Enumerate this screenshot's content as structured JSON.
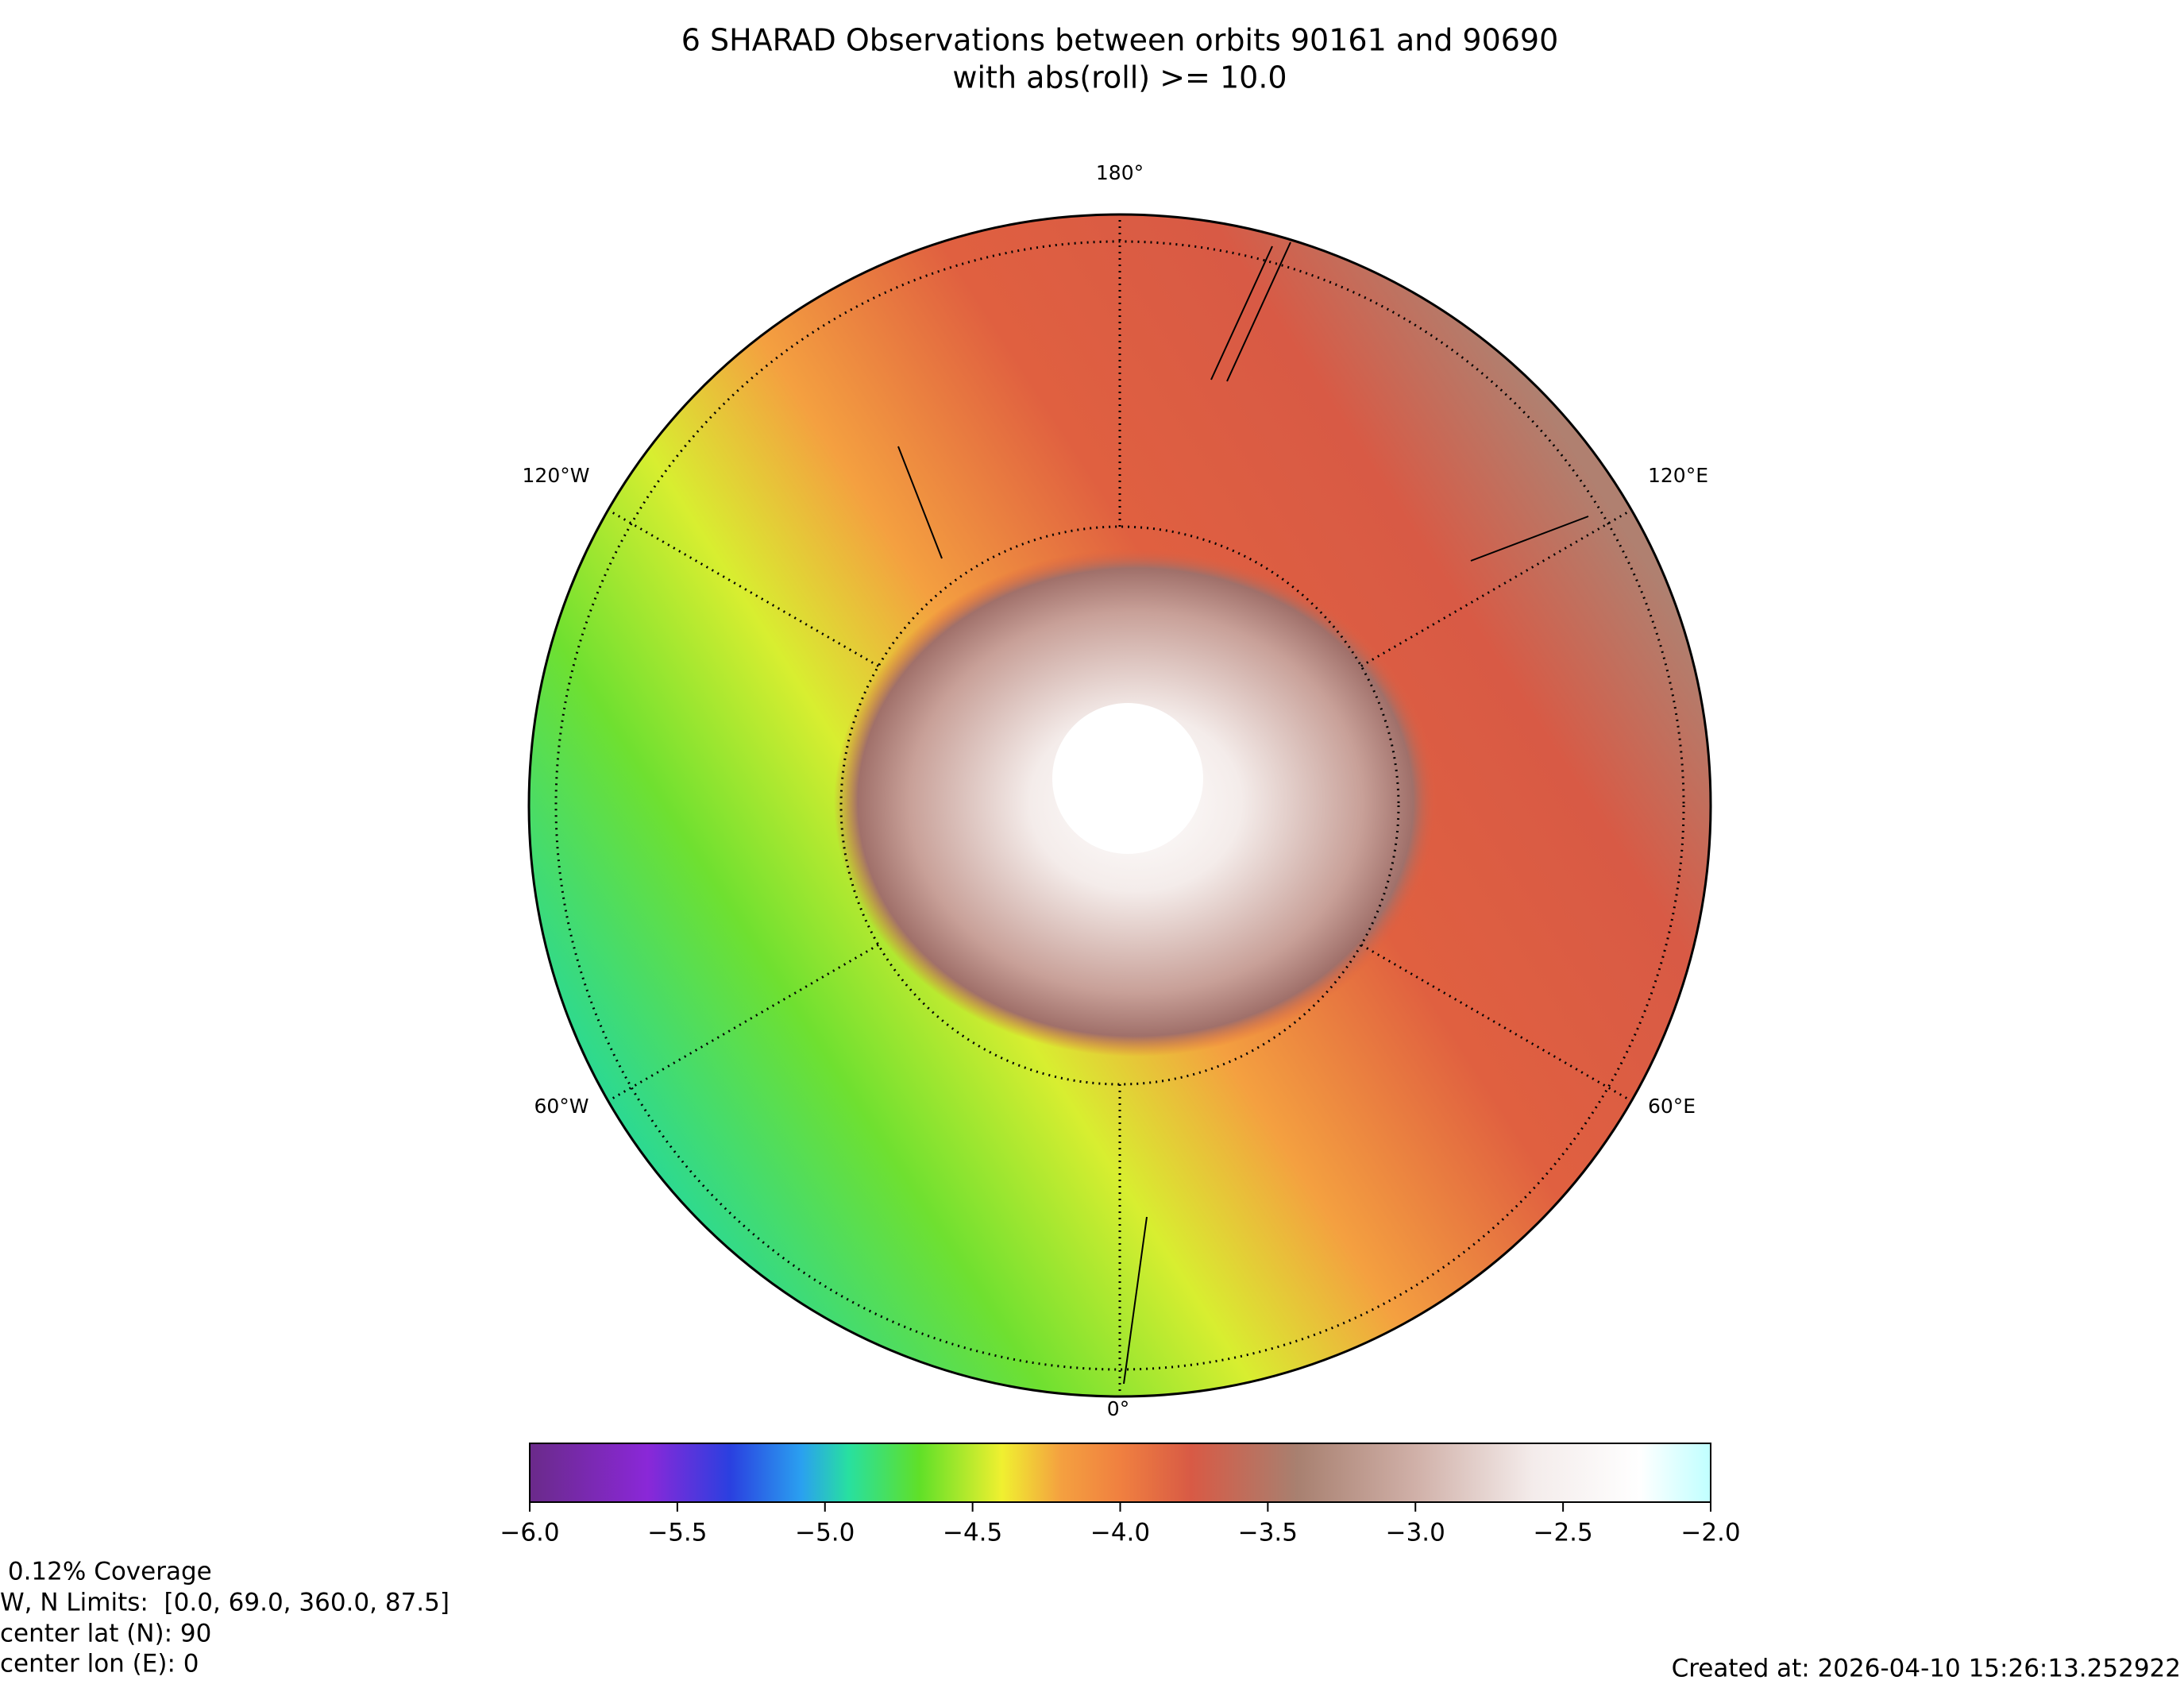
{
  "title": "6 SHARAD Observations between orbits 90161 and 90690",
  "subtitle": "with abs(roll) >= 10.0",
  "map": {
    "lon_labels": [
      "180°",
      "120°W",
      "120°E",
      "60°W",
      "60°E",
      "0°"
    ]
  },
  "colorbar": {
    "lim": [
      -6,
      -2
    ],
    "ticks": [
      {
        "value": -6,
        "label": "−6.0"
      },
      {
        "value": -5.5,
        "label": "−5.5"
      },
      {
        "value": -5,
        "label": "−5.0"
      },
      {
        "value": -4.5,
        "label": "−4.5"
      },
      {
        "value": -4,
        "label": "−4.0"
      },
      {
        "value": -3.5,
        "label": "−3.5"
      },
      {
        "value": -3,
        "label": "−3.0"
      },
      {
        "value": -2.5,
        "label": "−2.5"
      },
      {
        "value": -2,
        "label": "−2.0"
      }
    ]
  },
  "info": [
    " 0.12% Coverage",
    "W, N Limits:  [0.0, 69.0, 360.0, 87.5]",
    "center lat (N): 90",
    "center lon (E): 0"
  ],
  "created": "Created at: 2026-04-10 15:26:13.252922"
}
